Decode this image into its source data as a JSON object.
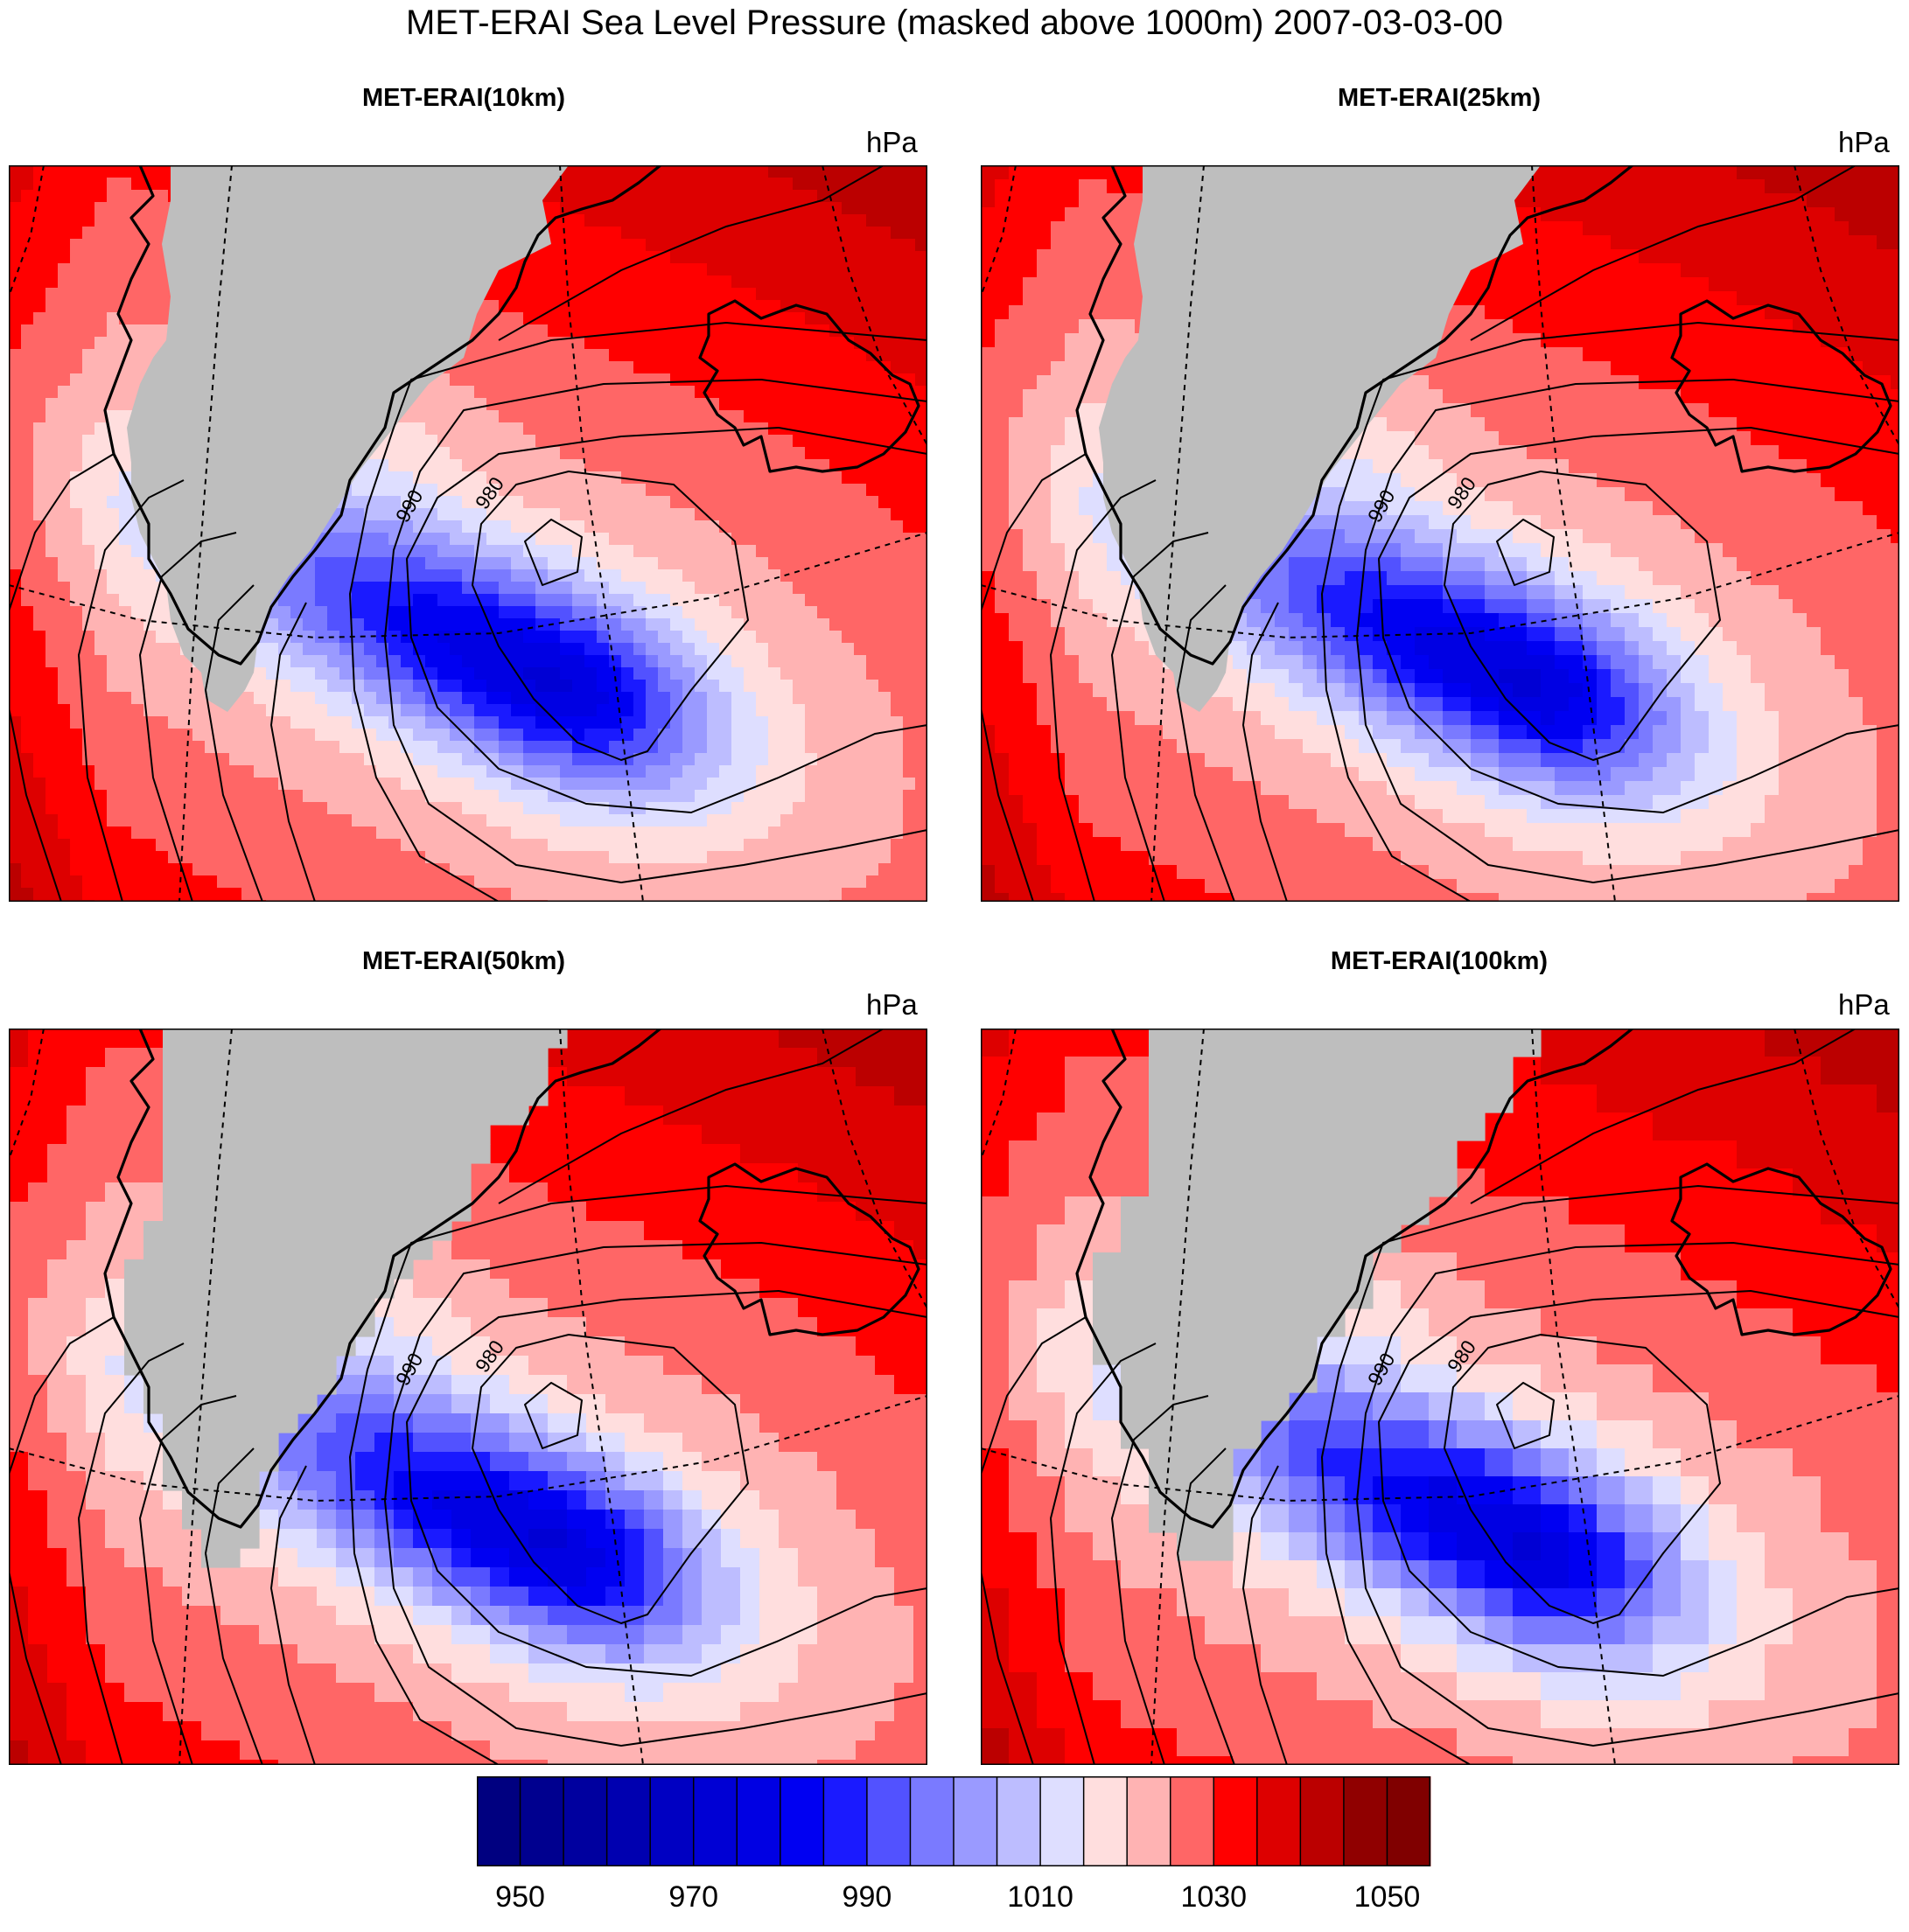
{
  "title": "MET-ERAI Sea Level Pressure (masked above 1000m) 2007-03-03-00",
  "panels": [
    {
      "title": "MET-ERAI(10km)",
      "units": "hPa",
      "contour_labels": [
        "990",
        "980"
      ]
    },
    {
      "title": "MET-ERAI(25km)",
      "units": "hPa",
      "contour_labels": [
        "990",
        "980"
      ]
    },
    {
      "title": "MET-ERAI(50km)",
      "units": "hPa",
      "contour_labels": [
        "990",
        "980"
      ]
    },
    {
      "title": "MET-ERAI(100km)",
      "units": "hPa",
      "contour_labels": [
        "990",
        "980"
      ]
    }
  ],
  "colorbar": {
    "levels": [
      950,
      955,
      960,
      965,
      970,
      975,
      980,
      985,
      990,
      995,
      1000,
      1005,
      1010,
      1015,
      1020,
      1025,
      1030,
      1035,
      1040,
      1045,
      1050
    ],
    "labeled_ticks": [
      "950",
      "970",
      "990",
      "1010",
      "1030",
      "1050"
    ],
    "colors": [
      "#000080",
      "#00008f",
      "#00009f",
      "#0000b0",
      "#0000c2",
      "#0000d4",
      "#0000e3",
      "#0000f2",
      "#1a1aff",
      "#5252ff",
      "#7a7aff",
      "#9a9aff",
      "#bdbdff",
      "#dedeff",
      "#ffdede",
      "#ffb3b3",
      "#ff6666",
      "#ff0000",
      "#dd0000",
      "#bb0000",
      "#900000",
      "#800000"
    ]
  },
  "legend_colors": {
    "land_mask": "#bebebe"
  }
}
